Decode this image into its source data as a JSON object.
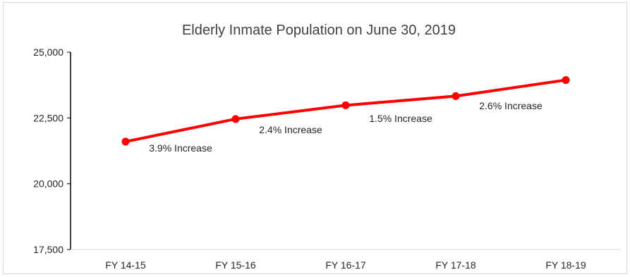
{
  "chart_data": {
    "type": "line",
    "title": "Elderly Inmate Population on June 30, 2019",
    "xlabel": "",
    "ylabel": "",
    "categories": [
      "FY 14-15",
      "FY 15-16",
      "FY 16-17",
      "FY 17-18",
      "FY 18-19"
    ],
    "series": [
      {
        "values": [
          21600,
          22460,
          22980,
          23330,
          23940
        ]
      }
    ],
    "ylim": [
      17500,
      25000
    ],
    "yticks": [
      17500,
      20000,
      22500,
      25000
    ],
    "ytick_labels": [
      "17,500",
      "20,000",
      "22,500",
      "25,000"
    ],
    "grid": false,
    "legend": "none",
    "annotations": [
      {
        "text": "3.9% Increase",
        "between": [
          "FY 14-15",
          "FY 15-16"
        ]
      },
      {
        "text": "2.4% Increase",
        "between": [
          "FY 15-16",
          "FY 16-17"
        ]
      },
      {
        "text": "1.5% Increase",
        "between": [
          "FY 16-17",
          "FY 17-18"
        ]
      },
      {
        "text": "2.6% Increase",
        "between": [
          "FY 17-18",
          "FY 18-19"
        ]
      }
    ],
    "colors": {
      "line": "#ff0000",
      "axis": "#000000",
      "text": "#262626",
      "title": "#404040",
      "border": "#d9d9d9"
    }
  }
}
